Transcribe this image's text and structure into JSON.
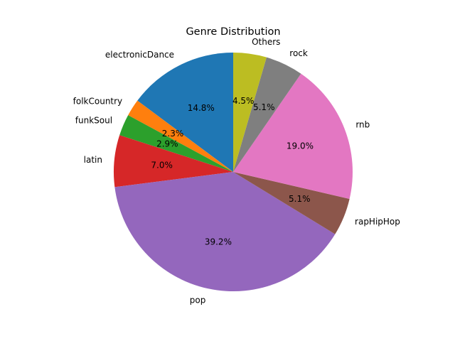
{
  "chart_data": {
    "type": "pie",
    "title": "Genre Distribution",
    "start_angle_deg": 90,
    "direction": "counterclockwise",
    "slices": [
      {
        "label": "electronicDance",
        "value": 14.8,
        "pct_label": "14.8%",
        "color": "#1f77b4"
      },
      {
        "label": "folkCountry",
        "value": 2.3,
        "pct_label": "2.3%",
        "color": "#ff7f0e"
      },
      {
        "label": "funkSoul",
        "value": 2.9,
        "pct_label": "2.9%",
        "color": "#2ca02c"
      },
      {
        "label": "latin",
        "value": 7.0,
        "pct_label": "7.0%",
        "color": "#d62728"
      },
      {
        "label": "pop",
        "value": 39.2,
        "pct_label": "39.2%",
        "color": "#9467bd"
      },
      {
        "label": "rapHipHop",
        "value": 5.1,
        "pct_label": "5.1%",
        "color": "#8c564b"
      },
      {
        "label": "rnb",
        "value": 19.0,
        "pct_label": "19.0%",
        "color": "#e377c2"
      },
      {
        "label": "rock",
        "value": 5.1,
        "pct_label": "5.1%",
        "color": "#7f7f7f"
      },
      {
        "label": "Others",
        "value": 4.5,
        "pct_label": "4.5%",
        "color": "#bcbd22"
      }
    ]
  }
}
